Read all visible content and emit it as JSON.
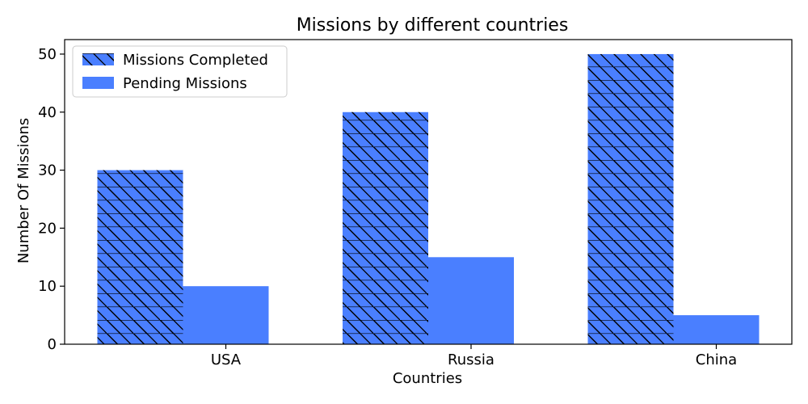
{
  "chart_data": {
    "type": "bar",
    "title": "Missions by different countries",
    "xlabel": "Countries",
    "ylabel": "Number Of Missions",
    "categories": [
      "USA",
      "Russia",
      "China"
    ],
    "series": [
      {
        "name": "Missions Completed",
        "values": [
          30,
          40,
          50
        ],
        "color": "#4a7fff",
        "hatch": "diagonal-and-horizontal"
      },
      {
        "name": "Pending Missions",
        "values": [
          10,
          15,
          5
        ],
        "color": "#4a7fff",
        "hatch": "none"
      }
    ],
    "ylim": [
      0,
      52.5
    ],
    "yticks": [
      0,
      10,
      20,
      30,
      40,
      50
    ],
    "legend": "top-left",
    "grid": false
  }
}
